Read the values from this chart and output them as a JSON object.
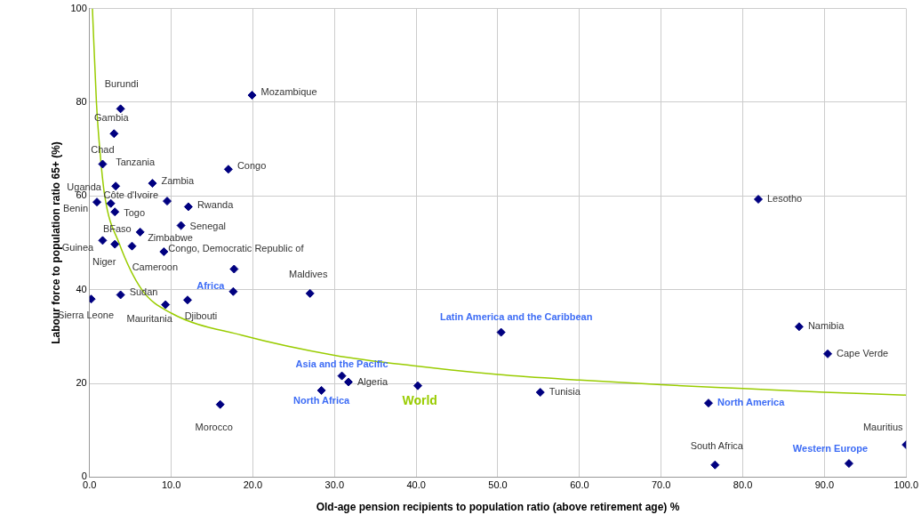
{
  "chart_data": {
    "type": "scatter",
    "xlabel": "Old-age pension recipients to population ratio (above retirement age) %",
    "ylabel": "Labour force to population ratio 65+ (%)",
    "xlim": [
      0,
      100
    ],
    "xticks": [
      {
        "value": 0,
        "label": "0.0"
      },
      {
        "value": 10,
        "label": "10.0"
      },
      {
        "value": 20,
        "label": "20.0"
      },
      {
        "value": 30,
        "label": "30.0"
      },
      {
        "value": 40,
        "label": "40.0"
      },
      {
        "value": 50,
        "label": "50.0"
      },
      {
        "value": 60,
        "label": "60.0"
      },
      {
        "value": 70,
        "label": "70.0"
      },
      {
        "value": 80,
        "label": "80.0"
      },
      {
        "value": 90,
        "label": "90.0"
      },
      {
        "value": 100,
        "label": "100.0"
      }
    ],
    "ylim": [
      0,
      100
    ],
    "yticks": [
      0,
      20,
      40,
      60,
      80,
      100
    ],
    "grid": true,
    "legend": false,
    "marker": "diamond",
    "series": [
      {
        "color": "#000080",
        "x": [
          3.8,
          19.9,
          3.0,
          1.6,
          3.2,
          7.7,
          17.0,
          0.9,
          2.6,
          9.5,
          12.1,
          3.1,
          11.2,
          6.2,
          1.6,
          3.1,
          5.2,
          9.1,
          17.7,
          27.0,
          0.2,
          3.8,
          9.3,
          12.0,
          16.0,
          31.7,
          81.9,
          86.9,
          90.4,
          55.2,
          76.6,
          100
        ],
        "values": [
          78.6,
          81.5,
          73.3,
          66.8,
          62.1,
          62.7,
          65.7,
          58.7,
          58.4,
          58.9,
          57.7,
          56.6,
          53.7,
          52.3,
          50.5,
          49.7,
          49.3,
          48.1,
          44.4,
          39.2,
          38.0,
          38.9,
          36.8,
          37.8,
          15.5,
          20.3,
          59.3,
          32.1,
          26.3,
          18.1,
          2.6,
          6.9
        ],
        "value_labels": [
          "Burundi",
          "Mozambique",
          "Gambia",
          "Chad",
          "Tanzania",
          "Zambia",
          "Congo",
          "Benin",
          "Uganda",
          "Côte d'Ivoire",
          "Rwanda",
          "Togo",
          "Senegal",
          "BFaso",
          "Guinea",
          "Niger",
          "Zimbabwe",
          "Cameroon",
          "Congo, Democratic Republic of",
          "Maldives",
          "Sierra Leone",
          "Sudan",
          "Mauritania",
          "Djibouti",
          "Morocco",
          "Algeria",
          "Lesotho",
          "Namibia",
          "Cape Verde",
          "Tunisia",
          "South Africa",
          "Mauritius"
        ]
      },
      {
        "color": "#000080",
        "x": [
          17.6,
          50.4,
          30.9,
          28.4,
          40.2,
          75.8,
          93.0
        ],
        "values": [
          39.6,
          30.9,
          21.6,
          18.5,
          19.5,
          15.8,
          2.9
        ],
        "value_labels": [
          "Africa",
          "Latin America and the Caribbean",
          "Asia and the Pacific",
          "North Africa",
          null,
          "North America",
          "Western Europe"
        ]
      },
      {
        "type": "line",
        "name": "World",
        "color": "#99cc00",
        "marker": "none",
        "x": [
          0.35,
          0.84,
          1.24,
          1.86,
          3.6,
          6.4,
          10,
          18.6,
          30,
          40,
          50,
          60,
          70,
          80,
          90,
          100
        ],
        "values": [
          100,
          80,
          70.2,
          60,
          50,
          40,
          35,
          30.3,
          26.0,
          23.7,
          21.9,
          20.7,
          19.7,
          18.9,
          18.1,
          17.5
        ]
      }
    ]
  }
}
